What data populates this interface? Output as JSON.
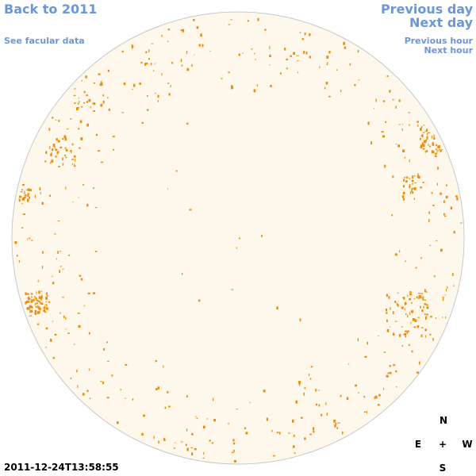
{
  "nav": {
    "back": "Back to 2011",
    "previous_day": "Previous day",
    "next_day": "Next day",
    "facular_data": "See facular data",
    "previous_hour": "Previous hour",
    "next_hour": "Next hour"
  },
  "compass": {
    "north": "N",
    "east": "E",
    "center": "+",
    "west": "W",
    "south": "S"
  },
  "timestamp": "2011-12-24T13:58:55"
}
